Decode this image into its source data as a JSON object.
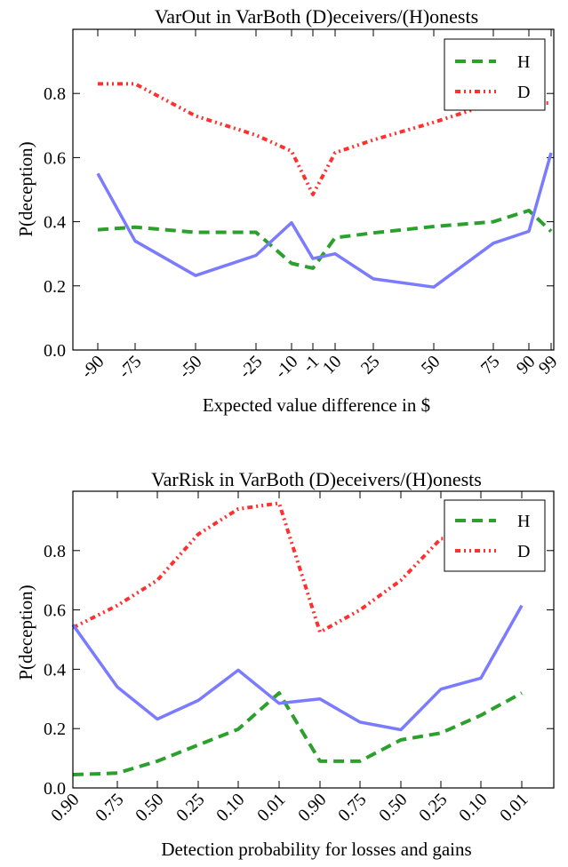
{
  "chart_data": [
    {
      "type": "line",
      "title": "VarOut in VarBoth (D)eceivers/(H)onests",
      "xlabel": "Expected value difference in $",
      "ylabel": "P(deception)",
      "x": [
        "-90",
        "-75",
        "-50",
        "-25",
        "-10",
        "-1",
        "10",
        "25",
        "50",
        "75",
        "90",
        "99"
      ],
      "ylim": [
        0,
        1.0
      ],
      "yticks": [
        "0.0",
        "0.2",
        "0.4",
        "0.6",
        "0.8"
      ],
      "legend": "top-right",
      "series": [
        {
          "name": "H",
          "color": "#2ca02c",
          "style": "dashed",
          "values": [
            0.375,
            0.383,
            0.367,
            0.367,
            0.27,
            0.255,
            0.35,
            0.365,
            0.385,
            0.4,
            0.435,
            0.37
          ]
        },
        {
          "name": "D",
          "color": "#ff3030",
          "style": "dashdotdot",
          "values": [
            0.83,
            0.83,
            0.73,
            0.67,
            0.62,
            0.485,
            0.615,
            0.655,
            0.71,
            0.77,
            0.77,
            0.77
          ]
        },
        {
          "name": "",
          "color": "#7b7bff",
          "style": "solid",
          "values": [
            0.55,
            0.34,
            0.232,
            0.295,
            0.397,
            0.285,
            0.3,
            0.222,
            0.196,
            0.333,
            0.37,
            0.615
          ]
        }
      ]
    },
    {
      "type": "line",
      "title": "VarRisk in VarBoth (D)eceivers/(H)onests",
      "xlabel": "Detection probability for losses and gains",
      "ylabel": "P(deception)",
      "x": [
        "0.90",
        "0.75",
        "0.50",
        "0.25",
        "0.10",
        "0.01",
        "0.90",
        "0.75",
        "0.50",
        "0.25",
        "0.10",
        "0.01"
      ],
      "ylim": [
        0,
        1.0
      ],
      "yticks": [
        "0.0",
        "0.2",
        "0.4",
        "0.6",
        "0.8"
      ],
      "legend": "top-right",
      "series": [
        {
          "name": "H",
          "color": "#2ca02c",
          "style": "dashed",
          "values": [
            0.045,
            0.05,
            0.09,
            0.145,
            0.198,
            0.32,
            0.09,
            0.09,
            0.162,
            0.185,
            0.245,
            0.32
          ]
        },
        {
          "name": "D",
          "color": "#ff3030",
          "style": "dashdotdot",
          "values": [
            0.54,
            0.615,
            0.7,
            0.855,
            0.94,
            0.96,
            0.525,
            0.6,
            0.7,
            0.84,
            0.84,
            0.84
          ]
        },
        {
          "name": "",
          "color": "#7b7bff",
          "style": "solid",
          "values": [
            0.55,
            0.34,
            0.232,
            0.295,
            0.397,
            0.285,
            0.3,
            0.222,
            0.196,
            0.333,
            0.37,
            0.615
          ]
        }
      ]
    }
  ]
}
